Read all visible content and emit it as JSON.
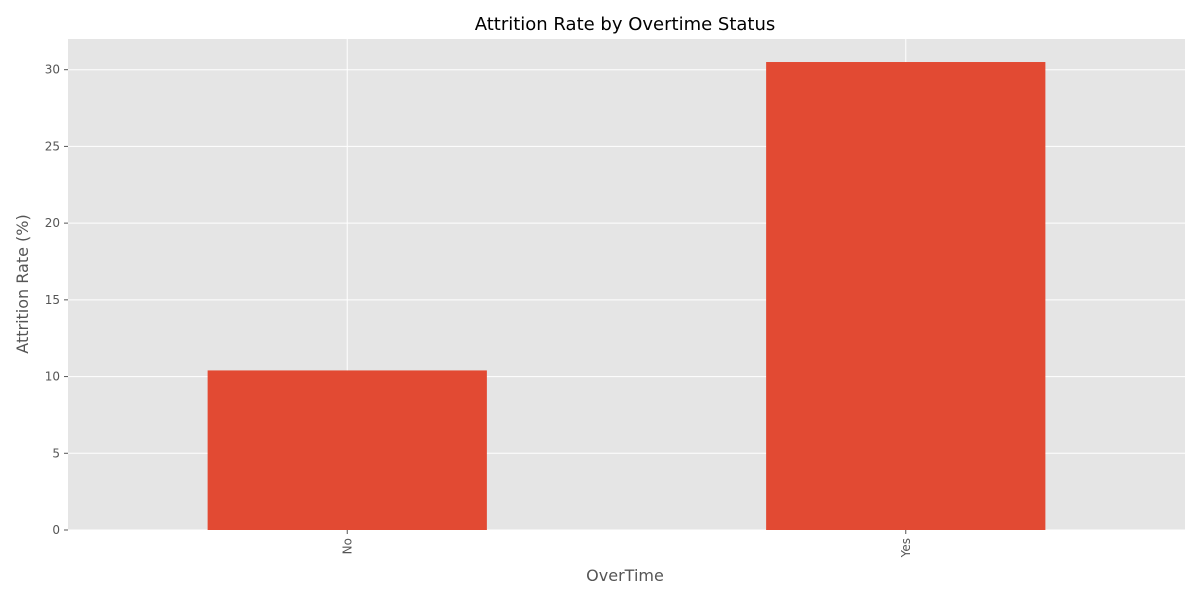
{
  "chart_data": {
    "type": "bar",
    "title": "Attrition Rate by Overtime Status",
    "xlabel": "OverTime",
    "ylabel": "Attrition Rate (%)",
    "categories": [
      "No",
      "Yes"
    ],
    "values": [
      10.4,
      30.5
    ],
    "ylim": [
      0,
      32
    ],
    "yticks": [
      0,
      5,
      10,
      15,
      20,
      25,
      30
    ],
    "ytick_labels": [
      "0",
      "5",
      "10",
      "15",
      "20",
      "25",
      "30"
    ],
    "xtick_labels": [
      "No",
      "Yes"
    ],
    "grid": true,
    "colors": {
      "bar": "#E24A33",
      "plot_bg": "#E5E5E5",
      "grid": "#FFFFFF"
    }
  }
}
